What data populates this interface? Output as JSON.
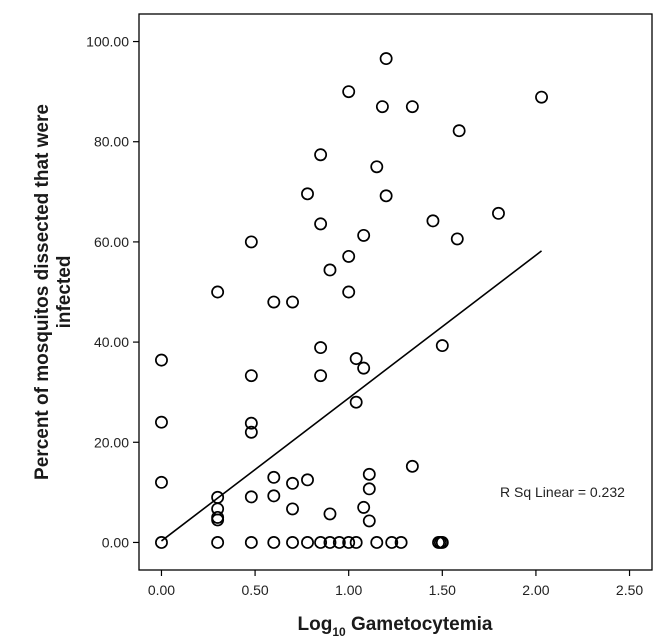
{
  "chart_data": {
    "type": "scatter",
    "title": "",
    "xlabel_main": "Log",
    "xlabel_sub": "10",
    "xlabel_rest": " Gametocytemia",
    "ylabel_line1": "Percent of mosquitos dissected that were",
    "ylabel_line2": "infected",
    "xlim": [
      -0.12,
      2.62
    ],
    "ylim": [
      -5.5,
      105.5
    ],
    "xticks": [
      0,
      0.5,
      1,
      1.5,
      2,
      2.5
    ],
    "xtick_labels": [
      "0.00",
      "0.50",
      "1.00",
      "1.50",
      "2.00",
      "2.50"
    ],
    "yticks": [
      0,
      20,
      40,
      60,
      80,
      100
    ],
    "ytick_labels": [
      "0.00",
      "20.00",
      "40.00",
      "60.00",
      "80.00",
      "100.00"
    ],
    "grid": false,
    "marker": "open-circle",
    "colors": {
      "marker": "#000000",
      "line": "#000000",
      "frame": "#000000"
    },
    "points": [
      [
        0.0,
        36.4
      ],
      [
        0.0,
        24.0
      ],
      [
        0.0,
        12.0
      ],
      [
        0.0,
        0.0
      ],
      [
        0.3,
        50.0
      ],
      [
        0.3,
        9.0
      ],
      [
        0.3,
        6.7
      ],
      [
        0.3,
        5.0
      ],
      [
        0.3,
        4.5
      ],
      [
        0.3,
        0.0
      ],
      [
        0.48,
        60.0
      ],
      [
        0.48,
        33.3
      ],
      [
        0.48,
        23.8
      ],
      [
        0.48,
        22.0
      ],
      [
        0.48,
        9.1
      ],
      [
        0.48,
        0.0
      ],
      [
        0.6,
        48.0
      ],
      [
        0.6,
        13.0
      ],
      [
        0.6,
        9.3
      ],
      [
        0.6,
        0.0
      ],
      [
        0.7,
        48.0
      ],
      [
        0.7,
        11.8
      ],
      [
        0.7,
        6.7
      ],
      [
        0.7,
        0.0
      ],
      [
        0.78,
        69.6
      ],
      [
        0.78,
        12.5
      ],
      [
        0.78,
        0.0
      ],
      [
        0.85,
        77.4
      ],
      [
        0.85,
        63.6
      ],
      [
        0.85,
        38.9
      ],
      [
        0.85,
        33.3
      ],
      [
        0.85,
        0.0
      ],
      [
        0.9,
        54.4
      ],
      [
        0.9,
        5.7
      ],
      [
        0.9,
        0.0
      ],
      [
        0.95,
        0.0
      ],
      [
        1.0,
        90.0
      ],
      [
        1.0,
        57.1
      ],
      [
        1.0,
        50.0
      ],
      [
        1.0,
        0.0
      ],
      [
        1.04,
        36.7
      ],
      [
        1.04,
        28.0
      ],
      [
        1.04,
        0.0
      ],
      [
        1.08,
        61.3
      ],
      [
        1.08,
        34.8
      ],
      [
        1.08,
        7.0
      ],
      [
        1.11,
        13.6
      ],
      [
        1.11,
        10.7
      ],
      [
        1.11,
        4.3
      ],
      [
        1.15,
        75.0
      ],
      [
        1.15,
        0.0
      ],
      [
        1.18,
        87.0
      ],
      [
        1.2,
        96.6
      ],
      [
        1.2,
        69.2
      ],
      [
        1.23,
        0.0
      ],
      [
        1.28,
        0.0
      ],
      [
        1.34,
        87.0
      ],
      [
        1.34,
        15.2
      ],
      [
        1.45,
        64.2
      ],
      [
        1.48,
        0.0
      ],
      [
        1.49,
        0.0
      ],
      [
        1.5,
        0.0
      ],
      [
        1.5,
        39.3
      ],
      [
        1.58,
        60.6
      ],
      [
        1.59,
        82.2
      ],
      [
        1.8,
        65.7
      ],
      [
        2.03,
        88.9
      ]
    ],
    "fit_line": {
      "x": [
        0.0,
        2.03
      ],
      "y": [
        0.3,
        58.2
      ]
    },
    "annotation": "R Sq Linear = 0.232"
  }
}
